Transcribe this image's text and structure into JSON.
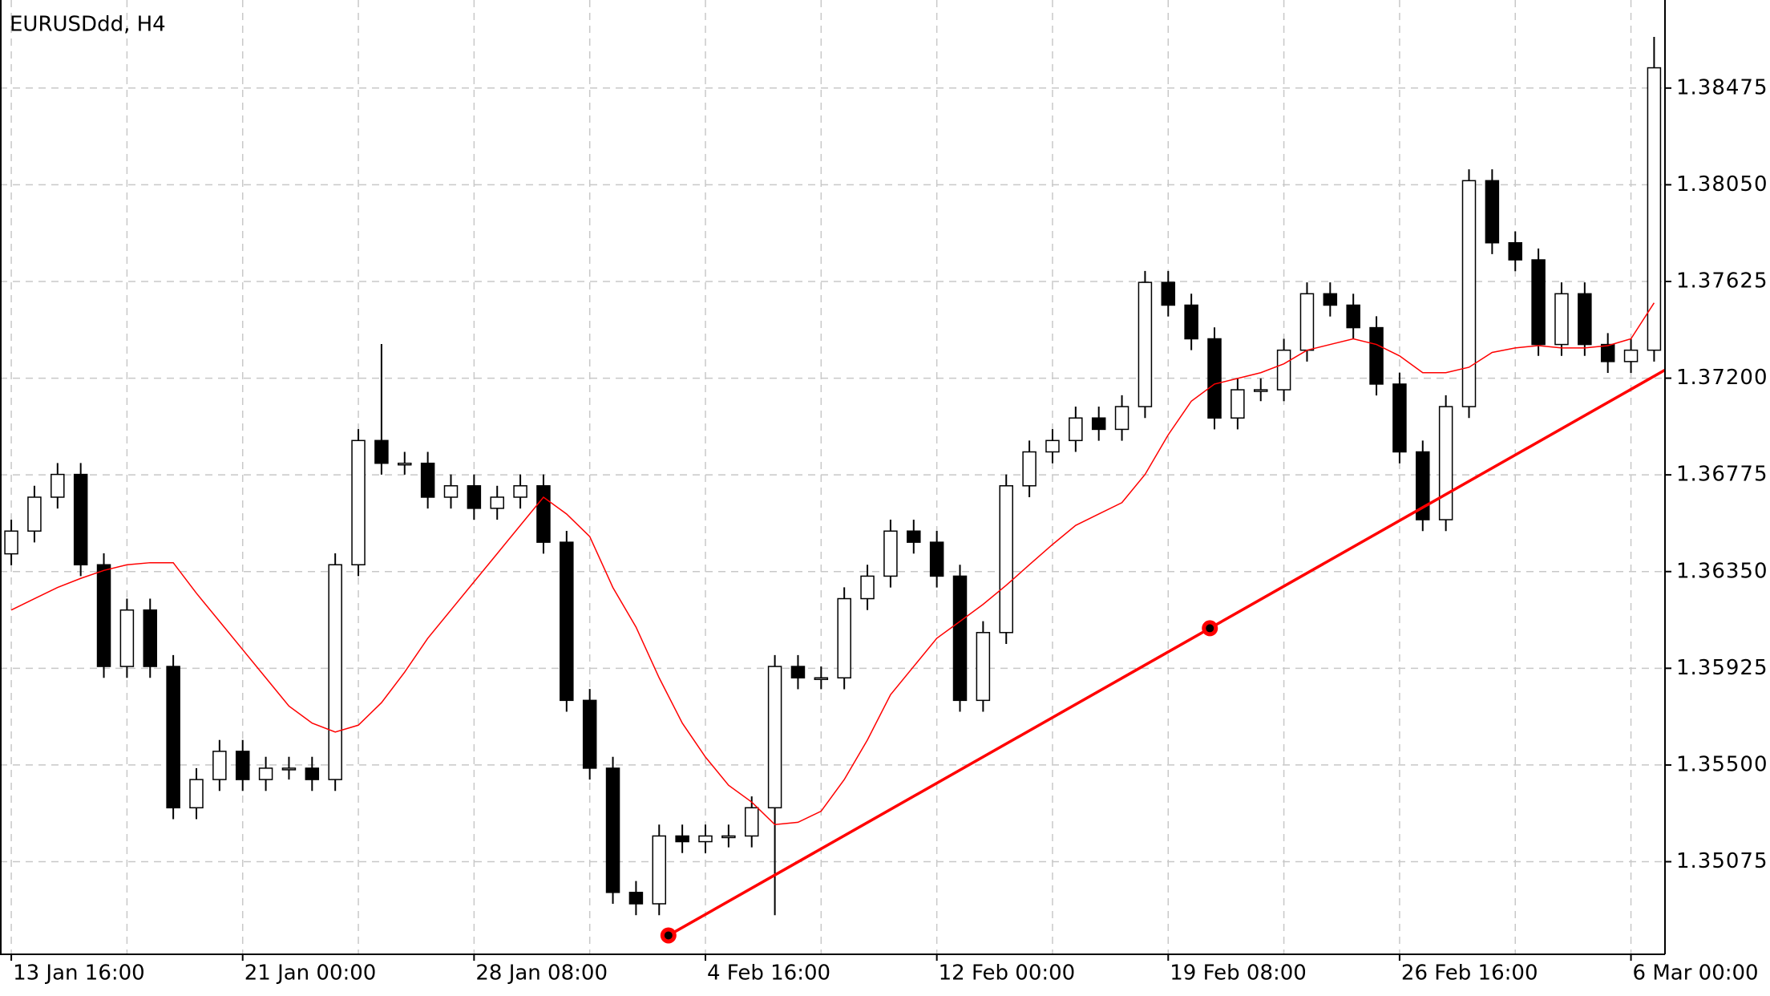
{
  "chart_data": {
    "type": "candlestick",
    "title": "EURUSDdd, H4",
    "categories": [
      "13 Jan 16:00",
      null,
      null,
      null,
      null,
      null,
      null,
      null,
      null,
      null,
      "21 Jan 00:00",
      null,
      null,
      null,
      null,
      null,
      null,
      null,
      null,
      null,
      "28 Jan 08:00",
      null,
      null,
      null,
      null,
      null,
      null,
      null,
      null,
      null,
      "4 Feb 16:00",
      null,
      null,
      null,
      null,
      null,
      null,
      null,
      null,
      null,
      "12 Feb 00:00",
      null,
      null,
      null,
      null,
      null,
      null,
      null,
      null,
      null,
      "19 Feb 08:00",
      null,
      null,
      null,
      null,
      null,
      null,
      null,
      null,
      null,
      "26 Feb 16:00",
      null,
      null,
      null,
      null,
      null,
      null,
      null,
      null,
      null,
      "6 Mar 00:00",
      null
    ],
    "open": [
      1.36428,
      1.36528,
      1.36677,
      1.36777,
      1.3638,
      1.35933,
      1.36181,
      1.35933,
      1.35312,
      1.35436,
      1.3556,
      1.35436,
      1.35486,
      1.35486,
      1.35436,
      1.3638,
      1.36926,
      1.36826,
      1.36826,
      1.36677,
      1.36727,
      1.36628,
      1.36677,
      1.36727,
      1.36479,
      1.35784,
      1.35486,
      1.3494,
      1.3489,
      1.35188,
      1.35163,
      1.35188,
      1.35188,
      1.35312,
      1.35933,
      1.35883,
      1.35883,
      1.36231,
      1.3633,
      1.36528,
      1.36479,
      1.3633,
      1.35784,
      1.36082,
      1.36727,
      1.36876,
      1.36926,
      1.37025,
      1.36975,
      1.37075,
      1.37621,
      1.37521,
      1.37373,
      1.37025,
      1.37149,
      1.37149,
      1.37323,
      1.37571,
      1.37521,
      1.37422,
      1.37174,
      1.36876,
      1.36578,
      1.37075,
      1.38068,
      1.37795,
      1.3772,
      1.37348,
      1.37571,
      1.37348,
      1.37273,
      1.37323
    ],
    "high": [
      1.36578,
      1.36727,
      1.36827,
      1.36827,
      1.3643,
      1.36231,
      1.36231,
      1.35983,
      1.35486,
      1.3561,
      1.3561,
      1.35536,
      1.35536,
      1.35536,
      1.3643,
      1.36976,
      1.3735,
      1.36876,
      1.36876,
      1.36777,
      1.36777,
      1.36727,
      1.36777,
      1.36777,
      1.36529,
      1.35834,
      1.35536,
      1.3499,
      1.35238,
      1.35238,
      1.35238,
      1.35238,
      1.35362,
      1.35983,
      1.35983,
      1.35933,
      1.36281,
      1.3638,
      1.36578,
      1.36578,
      1.36529,
      1.3638,
      1.36132,
      1.36777,
      1.36926,
      1.36976,
      1.37075,
      1.37075,
      1.37125,
      1.37671,
      1.37671,
      1.37571,
      1.37423,
      1.37199,
      1.37199,
      1.37373,
      1.37621,
      1.37621,
      1.37571,
      1.37472,
      1.37224,
      1.36926,
      1.37125,
      1.38118,
      1.38118,
      1.37845,
      1.3777,
      1.37621,
      1.37621,
      1.37398,
      1.37373,
      1.387
    ],
    "low": [
      1.36378,
      1.36478,
      1.36627,
      1.3633,
      1.35883,
      1.35883,
      1.35883,
      1.35262,
      1.35262,
      1.35386,
      1.35386,
      1.35386,
      1.35436,
      1.35386,
      1.35386,
      1.3633,
      1.36776,
      1.36776,
      1.36627,
      1.36627,
      1.36578,
      1.36578,
      1.36627,
      1.36429,
      1.35734,
      1.35436,
      1.3489,
      1.3484,
      1.3484,
      1.35113,
      1.35113,
      1.35138,
      1.35138,
      1.3484,
      1.35833,
      1.35833,
      1.35833,
      1.36181,
      1.3628,
      1.36429,
      1.3628,
      1.35734,
      1.35734,
      1.36032,
      1.36677,
      1.36826,
      1.36876,
      1.36925,
      1.36925,
      1.37025,
      1.37471,
      1.37323,
      1.36975,
      1.36975,
      1.37099,
      1.37099,
      1.37273,
      1.37471,
      1.37372,
      1.37124,
      1.36826,
      1.36528,
      1.36528,
      1.37025,
      1.37745,
      1.3767,
      1.37298,
      1.37298,
      1.37298,
      1.37223,
      1.37223,
      1.37273
    ],
    "close": [
      1.36528,
      1.36677,
      1.36777,
      1.3638,
      1.35933,
      1.36181,
      1.35933,
      1.35312,
      1.35436,
      1.3556,
      1.35436,
      1.35486,
      1.35486,
      1.35436,
      1.3638,
      1.36926,
      1.36826,
      1.36826,
      1.36677,
      1.36727,
      1.36628,
      1.36677,
      1.36727,
      1.36479,
      1.35784,
      1.35486,
      1.3494,
      1.3489,
      1.35188,
      1.35163,
      1.35188,
      1.35188,
      1.35312,
      1.35933,
      1.35883,
      1.35883,
      1.36231,
      1.3633,
      1.36528,
      1.36479,
      1.3633,
      1.35784,
      1.36082,
      1.36727,
      1.36876,
      1.36926,
      1.37025,
      1.36975,
      1.37075,
      1.37621,
      1.37521,
      1.37373,
      1.37025,
      1.37149,
      1.37149,
      1.37323,
      1.37571,
      1.37521,
      1.37422,
      1.37174,
      1.36876,
      1.36578,
      1.37075,
      1.38068,
      1.37795,
      1.3772,
      1.37348,
      1.37571,
      1.37348,
      1.37273,
      1.37323,
      1.38564
    ],
    "up_color": "#ffffff",
    "down_color": "#000000",
    "ma": {
      "color": "#ff0000",
      "values": [
        1.36181,
        1.36231,
        1.3628,
        1.3632,
        1.36355,
        1.3638,
        1.36389,
        1.36389,
        1.36255,
        1.36131,
        1.36007,
        1.35883,
        1.35759,
        1.35684,
        1.35645,
        1.35675,
        1.35774,
        1.35908,
        1.36057,
        1.36181,
        1.36305,
        1.36429,
        1.36553,
        1.36677,
        1.36603,
        1.36504,
        1.3628,
        1.36106,
        1.35883,
        1.35684,
        1.35535,
        1.35411,
        1.35337,
        1.35238,
        1.35248,
        1.35297,
        1.35436,
        1.3561,
        1.35809,
        1.35933,
        1.36057,
        1.36131,
        1.36206,
        1.3629,
        1.3638,
        1.36469,
        1.36553,
        1.36603,
        1.36653,
        1.36777,
        1.36951,
        1.37099,
        1.37174,
        1.37199,
        1.37224,
        1.37263,
        1.37323,
        1.37348,
        1.37373,
        1.37348,
        1.37298,
        1.37224,
        1.37224,
        1.37248,
        1.37313,
        1.37333,
        1.37343,
        1.37333,
        1.37333,
        1.37343,
        1.37373,
        1.37531
      ]
    },
    "trendline": {
      "color": "#ff0000",
      "x": [
        28.4,
        51.8
      ],
      "y": [
        1.34751,
        1.36101
      ],
      "ray": true
    },
    "ylim": [
      1.34668,
      1.38862
    ],
    "yticks": [
      1.38475,
      {
        "value": 1.3805,
        "label": "1.38050"
      },
      1.37625,
      {
        "value": 1.372,
        "label": "1.37200"
      },
      1.36775,
      {
        "value": 1.3635,
        "label": "1.36350"
      },
      1.35925,
      {
        "value": 1.355,
        "label": "1.35500"
      },
      1.35075
    ],
    "grid": true
  }
}
